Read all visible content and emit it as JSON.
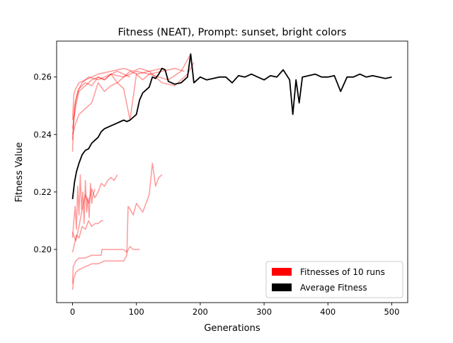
{
  "chart_data": {
    "type": "line",
    "title": "Fitness (NEAT), Prompt: sunset, bright colors",
    "xlabel": "Generations",
    "ylabel": "Fitness Value",
    "xlim": [
      -25,
      525
    ],
    "ylim": [
      0.1815,
      0.2725
    ],
    "xticks": [
      0,
      100,
      200,
      300,
      400,
      500
    ],
    "xtick_labels": [
      "0",
      "100",
      "200",
      "300",
      "400",
      "500"
    ],
    "yticks": [
      0.2,
      0.22,
      0.24,
      0.26
    ],
    "ytick_labels": [
      "0.20",
      "0.22",
      "0.24",
      "0.26"
    ],
    "grid": false,
    "legend": {
      "position": "lower-right",
      "entries": [
        {
          "label": "Fitnesses of 10 runs",
          "color": "#ff0000"
        },
        {
          "label": "Average Fitness",
          "color": "#000000"
        }
      ]
    },
    "series": [
      {
        "color": "#ff0000",
        "opacity": 0.4,
        "x": [
          0,
          2,
          5,
          10,
          20,
          30,
          40,
          60,
          80,
          95,
          105,
          120,
          140
        ],
        "y": [
          0.245,
          0.254,
          0.256,
          0.258,
          0.259,
          0.26,
          0.261,
          0.262,
          0.263,
          0.262,
          0.263,
          0.262,
          0.263
        ]
      },
      {
        "color": "#ff0000",
        "opacity": 0.4,
        "x": [
          0,
          3,
          8,
          15,
          25,
          40,
          60,
          80,
          100,
          120,
          150,
          170,
          185
        ],
        "y": [
          0.238,
          0.25,
          0.255,
          0.258,
          0.26,
          0.259,
          0.261,
          0.26,
          0.262,
          0.261,
          0.259,
          0.262,
          0.268
        ]
      },
      {
        "color": "#ff0000",
        "opacity": 0.4,
        "x": [
          0,
          5,
          10,
          20,
          30,
          40,
          50,
          60,
          70,
          80,
          90
        ],
        "y": [
          0.242,
          0.25,
          0.255,
          0.257,
          0.259,
          0.26,
          0.259,
          0.261,
          0.262,
          0.261,
          0.26
        ]
      },
      {
        "color": "#ff0000",
        "opacity": 0.4,
        "x": [
          0,
          5,
          10,
          20,
          30,
          40,
          50,
          60,
          70,
          80,
          90,
          100,
          120,
          140,
          160,
          180,
          190
        ],
        "y": [
          0.24,
          0.244,
          0.247,
          0.249,
          0.251,
          0.258,
          0.255,
          0.257,
          0.258,
          0.256,
          0.245,
          0.261,
          0.262,
          0.258,
          0.257,
          0.261,
          0.265
        ]
      },
      {
        "color": "#ff0000",
        "opacity": 0.4,
        "x": [
          0,
          2,
          5,
          10,
          20,
          30,
          40,
          50,
          60,
          70,
          80,
          90,
          100,
          110,
          120,
          140,
          160,
          175
        ],
        "y": [
          0.234,
          0.246,
          0.252,
          0.256,
          0.258,
          0.257,
          0.26,
          0.259,
          0.261,
          0.258,
          0.26,
          0.262,
          0.261,
          0.259,
          0.261,
          0.262,
          0.263,
          0.262
        ]
      },
      {
        "color": "#ff0000",
        "opacity": 0.4,
        "x": [
          0,
          2,
          4,
          6,
          8,
          10,
          12,
          14,
          16,
          18,
          20,
          22,
          24,
          26,
          28,
          30,
          32,
          35
        ],
        "y": [
          0.204,
          0.21,
          0.215,
          0.207,
          0.222,
          0.212,
          0.226,
          0.214,
          0.22,
          0.209,
          0.224,
          0.213,
          0.218,
          0.211,
          0.223,
          0.216,
          0.219,
          0.221
        ]
      },
      {
        "color": "#ff0000",
        "opacity": 0.4,
        "x": [
          0,
          5,
          10,
          15,
          20,
          25,
          30,
          35,
          40,
          45,
          50,
          55,
          60,
          65,
          70
        ],
        "y": [
          0.206,
          0.203,
          0.208,
          0.214,
          0.219,
          0.216,
          0.221,
          0.218,
          0.22,
          0.223,
          0.222,
          0.224,
          0.225,
          0.224,
          0.226
        ]
      },
      {
        "color": "#ff0000",
        "opacity": 0.4,
        "x": [
          0,
          1,
          3,
          5,
          10,
          20,
          30,
          45,
          46,
          60,
          80,
          85,
          90,
          95,
          105
        ],
        "y": [
          0.188,
          0.194,
          0.195,
          0.196,
          0.197,
          0.197,
          0.198,
          0.198,
          0.2,
          0.2,
          0.2,
          0.199,
          0.201,
          0.2,
          0.2
        ]
      },
      {
        "color": "#ff0000",
        "opacity": 0.4,
        "x": [
          0,
          2,
          5,
          10,
          20,
          30,
          40,
          50,
          60,
          70,
          80,
          85,
          87,
          90,
          95,
          100,
          110,
          120,
          125,
          130,
          135,
          140
        ],
        "y": [
          0.186,
          0.19,
          0.192,
          0.193,
          0.194,
          0.195,
          0.195,
          0.196,
          0.196,
          0.196,
          0.196,
          0.198,
          0.215,
          0.214,
          0.212,
          0.216,
          0.213,
          0.219,
          0.23,
          0.222,
          0.225,
          0.226
        ]
      },
      {
        "color": "#ff0000",
        "opacity": 0.4,
        "x": [
          0,
          3,
          6,
          10,
          15,
          20,
          25,
          30,
          35,
          40,
          45,
          48
        ],
        "y": [
          0.199,
          0.202,
          0.205,
          0.204,
          0.208,
          0.207,
          0.21,
          0.208,
          0.209,
          0.209,
          0.21,
          0.21
        ]
      },
      {
        "color": "#000000",
        "opacity": 1.0,
        "name": "Average Fitness",
        "x": [
          0,
          3,
          6,
          10,
          15,
          20,
          25,
          30,
          35,
          40,
          45,
          50,
          55,
          60,
          65,
          70,
          75,
          80,
          85,
          90,
          95,
          100,
          105,
          110,
          115,
          120,
          125,
          130,
          135,
          140,
          145,
          150,
          160,
          170,
          180,
          185,
          190,
          200,
          210,
          220,
          230,
          240,
          250,
          260,
          270,
          280,
          290,
          300,
          310,
          320,
          330,
          340,
          345,
          350,
          355,
          360,
          370,
          380,
          390,
          400,
          410,
          420,
          430,
          440,
          450,
          460,
          470,
          480,
          490,
          500
        ],
        "y": [
          0.2175,
          0.2235,
          0.227,
          0.23,
          0.233,
          0.2345,
          0.235,
          0.237,
          0.238,
          0.239,
          0.241,
          0.242,
          0.2425,
          0.243,
          0.2435,
          0.244,
          0.2445,
          0.245,
          0.2445,
          0.245,
          0.246,
          0.247,
          0.252,
          0.2545,
          0.2555,
          0.2565,
          0.26,
          0.2595,
          0.261,
          0.263,
          0.2625,
          0.2585,
          0.2575,
          0.258,
          0.26,
          0.268,
          0.258,
          0.26,
          0.259,
          0.2595,
          0.26,
          0.26,
          0.258,
          0.2605,
          0.26,
          0.261,
          0.26,
          0.259,
          0.2605,
          0.26,
          0.2625,
          0.259,
          0.247,
          0.259,
          0.251,
          0.26,
          0.2605,
          0.261,
          0.26,
          0.26,
          0.2605,
          0.255,
          0.26,
          0.26,
          0.261,
          0.26,
          0.2605,
          0.26,
          0.2595,
          0.26
        ]
      }
    ]
  }
}
